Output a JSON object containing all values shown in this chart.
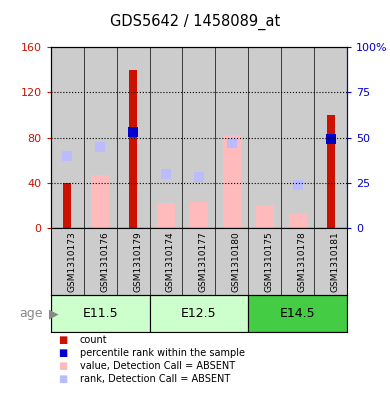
{
  "title": "GDS5642 / 1458089_at",
  "samples": [
    "GSM1310173",
    "GSM1310176",
    "GSM1310179",
    "GSM1310174",
    "GSM1310177",
    "GSM1310180",
    "GSM1310175",
    "GSM1310178",
    "GSM1310181"
  ],
  "groups": [
    {
      "label": "E11.5",
      "indices": [
        0,
        1,
        2
      ]
    },
    {
      "label": "E12.5",
      "indices": [
        3,
        4,
        5
      ]
    },
    {
      "label": "E14.5",
      "indices": [
        6,
        7,
        8
      ]
    }
  ],
  "count_values": [
    40,
    0,
    140,
    0,
    0,
    0,
    0,
    0,
    100
  ],
  "percentile_rank_values": [
    null,
    null,
    53,
    null,
    null,
    null,
    null,
    null,
    49
  ],
  "absent_value_values": [
    null,
    47,
    null,
    22,
    23,
    82,
    20,
    12,
    null
  ],
  "absent_rank_values": [
    40,
    45,
    null,
    30,
    28,
    47,
    null,
    24,
    null
  ],
  "ylim_left": [
    0,
    160
  ],
  "ylim_right": [
    0,
    100
  ],
  "yticks_left": [
    0,
    40,
    80,
    120,
    160
  ],
  "yticks_right": [
    0,
    25,
    50,
    75,
    100
  ],
  "ytick_labels_right": [
    "0",
    "25",
    "50",
    "75",
    "100%"
  ],
  "color_count": "#cc1100",
  "color_percentile": "#0000cc",
  "color_absent_value": "#ffbbbb",
  "color_absent_rank": "#bbbbff",
  "color_group_bg_light": "#ccffcc",
  "color_group_bg_dark": "#44cc44",
  "color_sample_bg": "#cccccc",
  "age_label": "age",
  "legend_items": [
    {
      "label": "count",
      "color": "#cc1100"
    },
    {
      "label": "percentile rank within the sample",
      "color": "#0000cc"
    },
    {
      "label": "value, Detection Call = ABSENT",
      "color": "#ffbbbb"
    },
    {
      "label": "rank, Detection Call = ABSENT",
      "color": "#bbbbff"
    }
  ]
}
